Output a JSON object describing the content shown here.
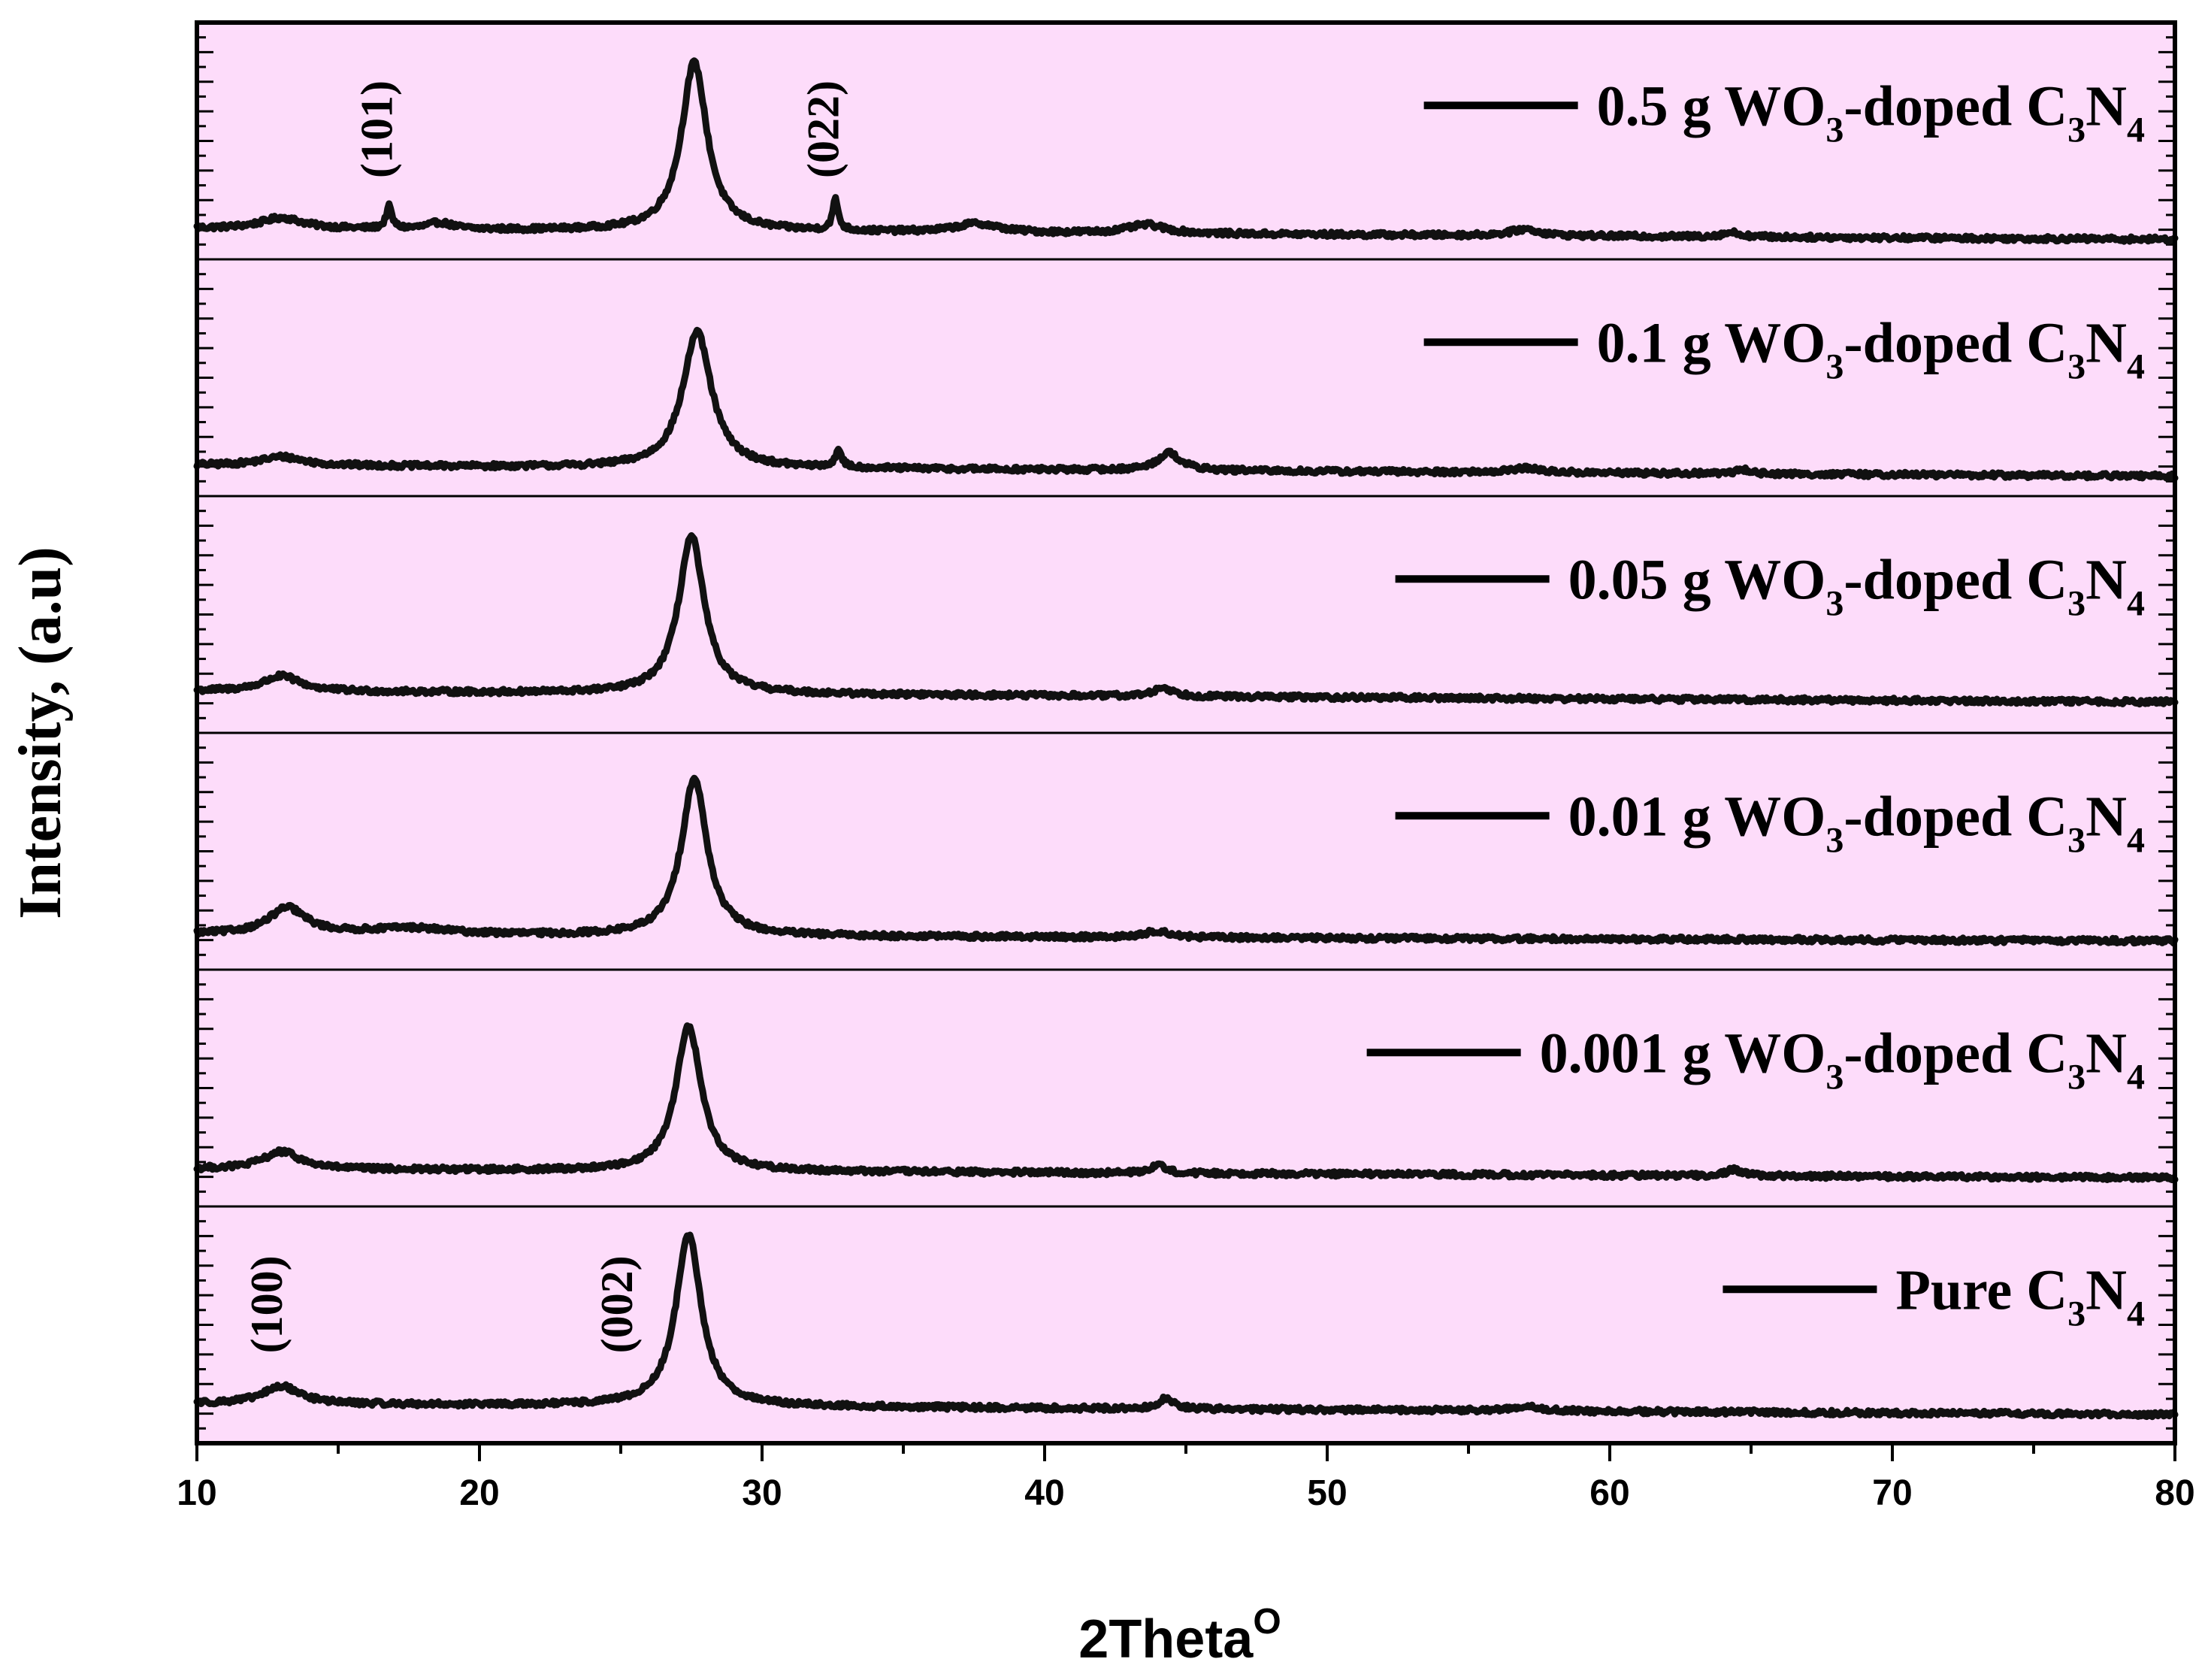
{
  "chart_data": {
    "type": "line",
    "title": "",
    "xlabel": "2Theta",
    "xlabel_superscript": "O",
    "ylabel": "Intensity, (a.u)",
    "xlim": [
      10,
      80
    ],
    "x_ticks": [
      10,
      20,
      30,
      40,
      50,
      60,
      70,
      80
    ],
    "x_tick_labels": [
      "10",
      "20",
      "30",
      "40",
      "50",
      "60",
      "70",
      "80"
    ],
    "ylim": [
      0,
      1
    ],
    "grid": false,
    "background": "#fddcfa",
    "line_color": "#111111",
    "panels": [
      {
        "name": "0.5 g WO3-doped C3N4",
        "legend": {
          "prefix": "0.5 g WO",
          "sub1": "3",
          "mid": "-doped C",
          "sub2": "3",
          "tail": "N",
          "sub3": "4"
        },
        "baseline": [
          0.1,
          0.05
        ],
        "peaks": [
          {
            "x": 13.0,
            "height": 0.05,
            "width": 0.9
          },
          {
            "x": 16.8,
            "height": 0.1,
            "width": 0.12
          },
          {
            "x": 18.6,
            "height": 0.03,
            "width": 0.5
          },
          {
            "x": 27.6,
            "height": 0.77,
            "width": 0.55
          },
          {
            "x": 32.6,
            "height": 0.14,
            "width": 0.12
          },
          {
            "x": 37.6,
            "height": 0.04,
            "width": 0.9
          },
          {
            "x": 43.6,
            "height": 0.04,
            "width": 0.8
          },
          {
            "x": 57.0,
            "height": 0.03,
            "width": 0.6
          },
          {
            "x": 64.3,
            "height": 0.02,
            "width": 0.4
          }
        ],
        "annotations": [
          {
            "text": "(101)",
            "x": 16.9,
            "y": 0.33
          },
          {
            "text": "(022)",
            "x": 32.7,
            "y": 0.33
          }
        ]
      },
      {
        "name": "0.1 g WO3-doped C3N4",
        "legend": {
          "prefix": "0.1 g WO",
          "sub1": "3",
          "mid": "-doped C",
          "sub2": "3",
          "tail": "N",
          "sub3": "4"
        },
        "baseline": [
          0.1,
          0.05
        ],
        "peaks": [
          {
            "x": 13.0,
            "height": 0.04,
            "width": 0.9
          },
          {
            "x": 27.7,
            "height": 0.62,
            "width": 0.62
          },
          {
            "x": 32.7,
            "height": 0.07,
            "width": 0.15
          },
          {
            "x": 44.4,
            "height": 0.08,
            "width": 0.5
          },
          {
            "x": 57.0,
            "height": 0.02,
            "width": 0.6
          },
          {
            "x": 64.7,
            "height": 0.02,
            "width": 0.3
          }
        ],
        "annotations": []
      },
      {
        "name": "0.05 g WO3-doped C3N4",
        "legend": {
          "prefix": "0.05 g WO",
          "sub1": "3",
          "mid": "-doped C",
          "sub2": "3",
          "tail": "N",
          "sub3": "4"
        },
        "baseline": [
          0.15,
          0.1
        ],
        "peaks": [
          {
            "x": 13.0,
            "height": 0.07,
            "width": 0.8
          },
          {
            "x": 27.5,
            "height": 0.72,
            "width": 0.55
          },
          {
            "x": 44.2,
            "height": 0.04,
            "width": 0.4
          }
        ],
        "annotations": []
      },
      {
        "name": "0.01 g WO3-doped C3N4",
        "legend": {
          "prefix": "0.01 g WO",
          "sub1": "3",
          "mid": "-doped C",
          "sub2": "3",
          "tail": "N",
          "sub3": "4"
        },
        "baseline": [
          0.12,
          0.09
        ],
        "peaks": [
          {
            "x": 13.2,
            "height": 0.12,
            "width": 0.8
          },
          {
            "x": 17.5,
            "height": 0.03,
            "width": 1.8
          },
          {
            "x": 27.6,
            "height": 0.72,
            "width": 0.55
          },
          {
            "x": 44.0,
            "height": 0.03,
            "width": 0.5
          }
        ],
        "annotations": []
      },
      {
        "name": "0.001 g WO3-doped C3N4",
        "legend": {
          "prefix": "0.001 g WO",
          "sub1": "3",
          "mid": "-doped C",
          "sub2": "3",
          "tail": "N",
          "sub3": "4"
        },
        "baseline": [
          0.13,
          0.09
        ],
        "peaks": [
          {
            "x": 13.0,
            "height": 0.08,
            "width": 0.8
          },
          {
            "x": 27.4,
            "height": 0.66,
            "width": 0.55
          },
          {
            "x": 44.0,
            "height": 0.04,
            "width": 0.3
          },
          {
            "x": 64.4,
            "height": 0.03,
            "width": 0.3
          }
        ],
        "annotations": []
      },
      {
        "name": "Pure C3N4",
        "legend": {
          "prefix": "Pure C",
          "sub1": "3",
          "mid": "N",
          "sub2": "4",
          "tail": "",
          "sub3": ""
        },
        "baseline": [
          0.14,
          0.09
        ],
        "peaks": [
          {
            "x": 13.0,
            "height": 0.08,
            "width": 0.8
          },
          {
            "x": 27.4,
            "height": 0.78,
            "width": 0.55
          },
          {
            "x": 44.3,
            "height": 0.05,
            "width": 0.3
          },
          {
            "x": 57.0,
            "height": 0.02,
            "width": 0.6
          }
        ],
        "annotations": [
          {
            "text": "(100)",
            "x": 13.0,
            "y": 0.37
          },
          {
            "text": "(002)",
            "x": 25.4,
            "y": 0.37
          }
        ]
      }
    ]
  }
}
